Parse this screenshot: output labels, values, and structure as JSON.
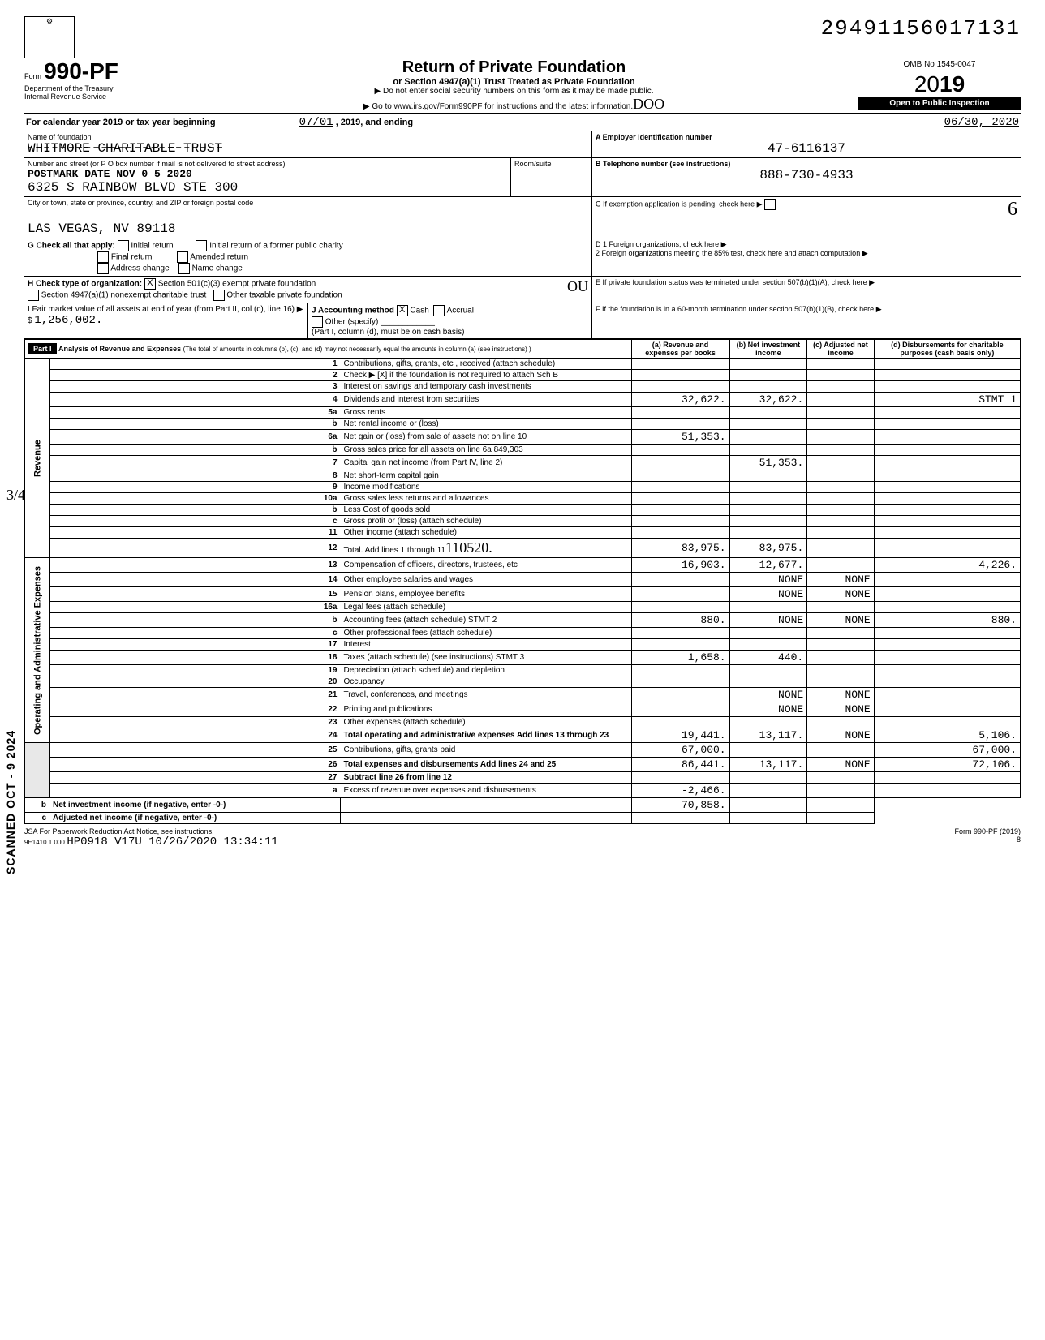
{
  "dln": "29491156017131",
  "form": {
    "number": "990-PF",
    "prefix": "Form",
    "dept": "Department of the Treasury",
    "irs": "Internal Revenue Service",
    "title": "Return of Private Foundation",
    "sub1": "or Section 4947(a)(1) Trust Treated as Private Foundation",
    "sub2": "▶ Do not enter social security numbers on this form as it may be made public.",
    "sub3": "▶ Go to www.irs.gov/Form990PF for instructions and the latest information.",
    "omb": "OMB No 1545-0047",
    "year": "2019",
    "inspection": "Open to Public Inspection"
  },
  "period": {
    "line": "For calendar year 2019 or tax year beginning",
    "begin": "07/01",
    "mid": ", 2019, and ending",
    "end": "06/30, 2020"
  },
  "foundation": {
    "name_label": "Name of foundation",
    "name": "WHITMORE CHARITABLE TRUST",
    "addr_label": "Number and street (or P O box number if mail is not delivered to street address)",
    "postmark": "POSTMARK DATE NOV 0 5 2020",
    "street": "6325 S RAINBOW BLVD STE 300",
    "city_label": "City or town, state or province, country, and ZIP or foreign postal code",
    "city": "LAS VEGAS, NV 89118",
    "room_label": "Room/suite"
  },
  "right": {
    "a_label": "A  Employer identification number",
    "ein": "47-6116137",
    "b_label": "B  Telephone number (see instructions)",
    "phone": "888-730-4933",
    "c_label": "C  If exemption application is pending, check here",
    "d1": "D 1 Foreign organizations, check here",
    "d2": "2 Foreign organizations meeting the 85% test, check here and attach computation",
    "e": "E  If private foundation status was terminated under section 507(b)(1)(A), check here",
    "f": "F  If the foundation is in a 60-month termination under section 507(b)(1)(B), check here"
  },
  "checks": {
    "g_label": "G Check all that apply:",
    "g_opts": [
      "Initial return",
      "Final return",
      "Address change",
      "Initial return of a former public charity",
      "Amended return",
      "Name change"
    ],
    "h_label": "H Check type of organization:",
    "h1": "Section 501(c)(3) exempt private foundation",
    "h1_checked": "X",
    "h2": "Section 4947(a)(1) nonexempt charitable trust",
    "h3": "Other taxable private foundation",
    "i_label": "I  Fair market value of all assets at end of year (from Part II, col (c), line 16) ▶ $",
    "i_val": "1,256,002.",
    "j_label": "J Accounting method",
    "j_cash": "Cash",
    "j_cash_chk": "X",
    "j_accrual": "Accrual",
    "j_other": "Other (specify)",
    "j_note": "(Part I, column (d), must be on cash basis)"
  },
  "cursive": {
    "ou": "OU",
    "doo": "DOO",
    "six": "6",
    "frac": "3/4"
  },
  "part1": {
    "hdr": "Part I",
    "title": "Analysis of Revenue and Expenses",
    "note": "(The total of amounts in columns (b), (c), and (d) may not necessarily equal the amounts in column (a) (see instructions) )",
    "cols": {
      "a": "(a) Revenue and expenses per books",
      "b": "(b) Net investment income",
      "c": "(c) Adjusted net income",
      "d": "(d) Disbursements for charitable purposes (cash basis only)"
    }
  },
  "sections": {
    "rev": "Revenue",
    "ops": "Operating and Administrative Expenses"
  },
  "scanned": "SCANNED OCT - 9 2024",
  "rows": [
    {
      "n": "1",
      "d": "Contributions, gifts, grants, etc , received (attach schedule)"
    },
    {
      "n": "2",
      "d": "Check ▶ [X] if the foundation is not required to attach Sch B"
    },
    {
      "n": "3",
      "d": "Interest on savings and temporary cash investments"
    },
    {
      "n": "4",
      "d": "Dividends and interest from securities",
      "a": "32,622.",
      "b": "32,622.",
      "dd": "STMT 1"
    },
    {
      "n": "5a",
      "d": "Gross rents"
    },
    {
      "n": "b",
      "d": "Net rental income or (loss)"
    },
    {
      "n": "6a",
      "d": "Net gain or (loss) from sale of assets not on line 10",
      "a": "51,353."
    },
    {
      "n": "b",
      "d": "Gross sales price for all assets on line 6a        849,303"
    },
    {
      "n": "7",
      "d": "Capital gain net income (from Part IV, line 2)",
      "b": "51,353."
    },
    {
      "n": "8",
      "d": "Net short-term capital gain"
    },
    {
      "n": "9",
      "d": "Income modifications"
    },
    {
      "n": "10a",
      "d": "Gross sales less returns and allowances"
    },
    {
      "n": "b",
      "d": "Less Cost of goods sold"
    },
    {
      "n": "c",
      "d": "Gross profit or (loss) (attach schedule)"
    },
    {
      "n": "11",
      "d": "Other income (attach schedule)"
    },
    {
      "n": "12",
      "d": "Total. Add lines 1 through 11",
      "a": "83,975.",
      "b": "83,975."
    },
    {
      "n": "13",
      "d": "Compensation of officers, directors, trustees, etc",
      "a": "16,903.",
      "b": "12,677.",
      "dd": "4,226."
    },
    {
      "n": "14",
      "d": "Other employee salaries and wages",
      "b": "NONE",
      "c": "NONE"
    },
    {
      "n": "15",
      "d": "Pension plans, employee benefits",
      "b": "NONE",
      "c": "NONE"
    },
    {
      "n": "16a",
      "d": "Legal fees (attach schedule)"
    },
    {
      "n": "b",
      "d": "Accounting fees (attach schedule) STMT 2",
      "a": "880.",
      "b": "NONE",
      "c": "NONE",
      "dd": "880."
    },
    {
      "n": "c",
      "d": "Other professional fees (attach schedule)"
    },
    {
      "n": "17",
      "d": "Interest"
    },
    {
      "n": "18",
      "d": "Taxes (attach schedule) (see instructions) STMT 3",
      "a": "1,658.",
      "b": "440."
    },
    {
      "n": "19",
      "d": "Depreciation (attach schedule) and depletion"
    },
    {
      "n": "20",
      "d": "Occupancy"
    },
    {
      "n": "21",
      "d": "Travel, conferences, and meetings",
      "b": "NONE",
      "c": "NONE"
    },
    {
      "n": "22",
      "d": "Printing and publications",
      "b": "NONE",
      "c": "NONE"
    },
    {
      "n": "23",
      "d": "Other expenses (attach schedule)"
    },
    {
      "n": "24",
      "d": "Total operating and administrative expenses Add lines 13 through 23",
      "a": "19,441.",
      "b": "13,117.",
      "c": "NONE",
      "dd": "5,106.",
      "bold": true
    },
    {
      "n": "25",
      "d": "Contributions, gifts, grants paid",
      "a": "67,000.",
      "dd": "67,000."
    },
    {
      "n": "26",
      "d": "Total expenses and disbursements Add lines 24 and 25",
      "a": "86,441.",
      "b": "13,117.",
      "c": "NONE",
      "dd": "72,106.",
      "bold": true
    },
    {
      "n": "27",
      "d": "Subtract line 26 from line 12",
      "bold": true
    },
    {
      "n": "a",
      "d": "Excess of revenue over expenses and disbursements",
      "a": "-2,466."
    },
    {
      "n": "b",
      "d": "Net investment income (if negative, enter -0-)",
      "b": "70,858.",
      "bold": true
    },
    {
      "n": "c",
      "d": "Adjusted net income (if negative, enter -0-)",
      "bold": true
    }
  ],
  "footer": {
    "jsa": "JSA For Paperwork Reduction Act Notice, see instructions.",
    "code": "9E1410 1 000",
    "stamp": "HP0918 V17U 10/26/2020 13:34:11",
    "form": "Form 990-PF (2019)",
    "page": "8"
  },
  "handwritten_12": "110520."
}
